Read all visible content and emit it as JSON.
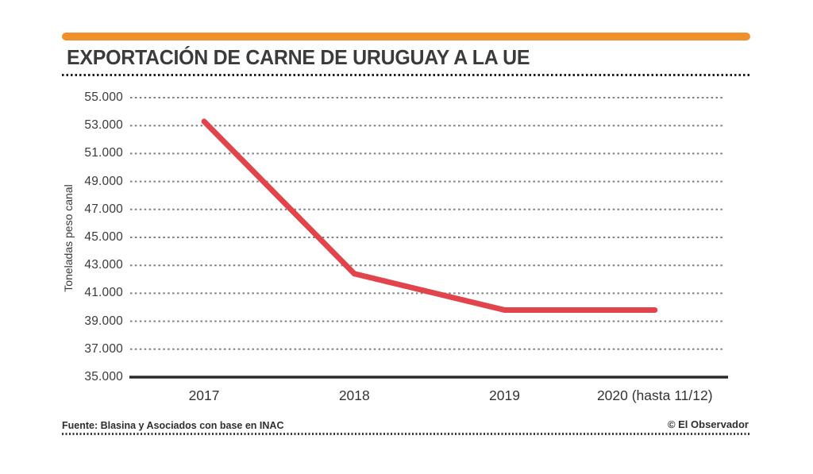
{
  "header": {
    "title": "EXPORTACIÓN DE CARNE DE URUGUAY A LA UE"
  },
  "colors": {
    "accent_orange": "#F0902C",
    "line_red": "#E2444B",
    "text_dark": "#3B3B3B"
  },
  "footer": {
    "source": "Fuente: Blasina y Asociados con base en INAC",
    "credit": "© El Observador"
  },
  "chart_data": {
    "type": "line",
    "title": "EXPORTACIÓN DE CARNE DE URUGUAY A LA UE",
    "categories": [
      "2017",
      "2018",
      "2019",
      "2020 (hasta 11/12)"
    ],
    "values": [
      53300,
      42400,
      39800,
      39800
    ],
    "xlabel": "",
    "ylabel": "Toneladas peso canal",
    "ylim": [
      35000,
      55000
    ],
    "ytick_step": 2000,
    "ytick_labels": [
      "35.000",
      "37.000",
      "39.000",
      "41.000",
      "43.000",
      "45.000",
      "47.000",
      "49.000",
      "51.000",
      "53.000",
      "55.000"
    ],
    "grid": "horizontal-dashed",
    "legend": "none",
    "line_color": "#E2444B"
  }
}
